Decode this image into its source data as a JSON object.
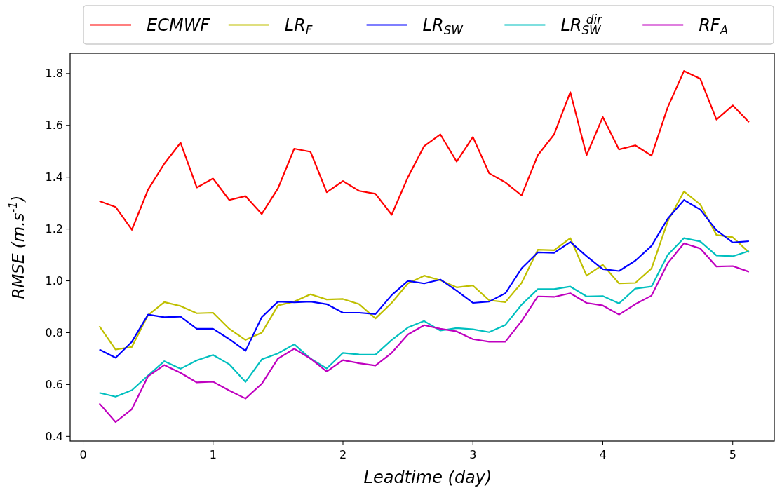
{
  "chart_data": {
    "type": "line",
    "xlabel": "Leadtime (day)",
    "ylabel": "RMSE (m.s$^{-1}$)",
    "x": [
      0.125,
      0.25,
      0.375,
      0.5,
      0.625,
      0.75,
      0.875,
      1,
      1.125,
      1.25,
      1.375,
      1.5,
      1.625,
      1.75,
      1.875,
      2,
      2.125,
      2.25,
      2.375,
      2.5,
      2.625,
      2.75,
      2.875,
      3,
      3.125,
      3.25,
      3.375,
      3.5,
      3.625,
      3.75,
      3.875,
      4,
      4.125,
      4.25,
      4.375,
      4.5,
      4.625,
      4.75,
      4.875,
      5,
      5.125
    ],
    "series": [
      {
        "name": "ECMWF",
        "color": "#ff0000",
        "values": [
          1.308,
          1.285,
          1.197,
          1.352,
          1.452,
          1.533,
          1.36,
          1.395,
          1.312,
          1.327,
          1.258,
          1.357,
          1.51,
          1.498,
          1.342,
          1.385,
          1.347,
          1.336,
          1.255,
          1.4,
          1.52,
          1.565,
          1.46,
          1.555,
          1.415,
          1.38,
          1.33,
          1.485,
          1.565,
          1.728,
          1.485,
          1.632,
          1.507,
          1.523,
          1.483,
          1.67,
          1.81,
          1.78,
          1.622,
          1.677,
          1.612
        ]
      },
      {
        "name": "LR$_{F}$",
        "color": "#bfbf00",
        "values": [
          0.825,
          0.735,
          0.745,
          0.868,
          0.918,
          0.903,
          0.875,
          0.877,
          0.815,
          0.772,
          0.8,
          0.905,
          0.92,
          0.948,
          0.928,
          0.93,
          0.91,
          0.855,
          0.915,
          0.99,
          1.02,
          1.002,
          0.975,
          0.982,
          0.925,
          0.918,
          0.992,
          1.12,
          1.118,
          1.165,
          1.02,
          1.062,
          0.99,
          0.992,
          1.048,
          1.23,
          1.345,
          1.295,
          1.177,
          1.168,
          1.11
        ]
      },
      {
        "name": "LR$_{SW}$",
        "color": "#0000ff",
        "values": [
          0.735,
          0.703,
          0.765,
          0.87,
          0.86,
          0.862,
          0.815,
          0.815,
          0.775,
          0.73,
          0.86,
          0.92,
          0.917,
          0.92,
          0.91,
          0.877,
          0.877,
          0.872,
          0.945,
          1.0,
          0.99,
          1.005,
          0.962,
          0.915,
          0.92,
          0.952,
          1.048,
          1.11,
          1.108,
          1.15,
          1.095,
          1.045,
          1.038,
          1.078,
          1.135,
          1.24,
          1.312,
          1.275,
          1.195,
          1.148,
          1.153
        ]
      },
      {
        "name": "LR$_{SW}$$^{dir}$",
        "color": "#00bfbf",
        "values": [
          0.568,
          0.553,
          0.578,
          0.635,
          0.69,
          0.661,
          0.693,
          0.714,
          0.678,
          0.61,
          0.697,
          0.72,
          0.755,
          0.7,
          0.662,
          0.722,
          0.716,
          0.715,
          0.772,
          0.82,
          0.845,
          0.808,
          0.818,
          0.813,
          0.802,
          0.83,
          0.908,
          0.968,
          0.968,
          0.978,
          0.94,
          0.941,
          0.913,
          0.97,
          0.978,
          1.1,
          1.165,
          1.152,
          1.098,
          1.095,
          1.115
        ]
      },
      {
        "name": "RF$_{A}$",
        "color": "#bf00bf",
        "values": [
          0.527,
          0.455,
          0.505,
          0.632,
          0.675,
          0.645,
          0.608,
          0.611,
          0.577,
          0.546,
          0.603,
          0.7,
          0.738,
          0.7,
          0.65,
          0.694,
          0.682,
          0.673,
          0.722,
          0.793,
          0.829,
          0.815,
          0.805,
          0.775,
          0.765,
          0.765,
          0.845,
          0.94,
          0.938,
          0.952,
          0.915,
          0.905,
          0.87,
          0.91,
          0.943,
          1.068,
          1.145,
          1.125,
          1.055,
          1.057,
          1.035
        ]
      }
    ],
    "xlim": [
      -0.1,
      5.32
    ],
    "ylim": [
      0.382,
      1.878
    ],
    "xticks": [
      0,
      1,
      2,
      3,
      4,
      5
    ],
    "yticks": [
      0.4,
      0.6,
      0.8,
      {
        "value": 1,
        "label": "1.0"
      },
      1.2,
      1.4,
      1.6,
      1.8
    ],
    "grid": false,
    "legend": "top",
    "marker": "none",
    "line_style": "solid"
  }
}
